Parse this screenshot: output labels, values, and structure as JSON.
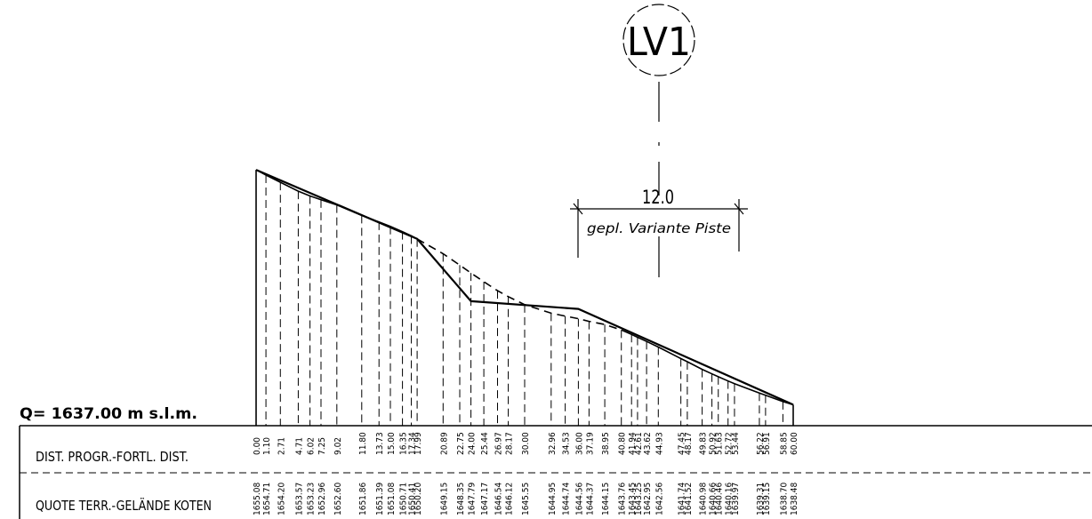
{
  "marker": {
    "label": "LV1"
  },
  "dimension": {
    "value": "12.0",
    "note": "gepl. Variante Piste"
  },
  "datum": {
    "label": "Q= 1637.00 m s.l.m."
  },
  "rows": {
    "distance_label": "DIST. PROGR.-FORTL. DIST.",
    "elevation_label": "QUOTE TERR.-GELÄNDE KOTEN"
  },
  "stations": [
    {
      "d": "0.00",
      "z": "1655.08"
    },
    {
      "d": "1.10",
      "z": "1654.71"
    },
    {
      "d": "2.71",
      "z": "1654.20"
    },
    {
      "d": "4.71",
      "z": "1653.57"
    },
    {
      "d": "6.02",
      "z": "1653.23"
    },
    {
      "d": "7.25",
      "z": "1652.96"
    },
    {
      "d": "9.02",
      "z": "1652.60"
    },
    {
      "d": "11.80",
      "z": "1651.86"
    },
    {
      "d": "13.73",
      "z": "1651.39"
    },
    {
      "d": "15.00",
      "z": "1651.08"
    },
    {
      "d": "16.35",
      "z": "1650.71"
    },
    {
      "d": "17.34",
      "z": "1650.41"
    },
    {
      "d": "17.99",
      "z": "1650.20"
    },
    {
      "d": "20.89",
      "z": "1649.15"
    },
    {
      "d": "22.75",
      "z": "1648.35"
    },
    {
      "d": "24.00",
      "z": "1647.79"
    },
    {
      "d": "25.44",
      "z": "1647.17"
    },
    {
      "d": "26.97",
      "z": "1646.54"
    },
    {
      "d": "28.17",
      "z": "1646.12"
    },
    {
      "d": "30.00",
      "z": "1645.55"
    },
    {
      "d": "32.96",
      "z": "1644.95"
    },
    {
      "d": "34.53",
      "z": "1644.74"
    },
    {
      "d": "36.00",
      "z": "1644.56"
    },
    {
      "d": "37.19",
      "z": "1644.37"
    },
    {
      "d": "38.95",
      "z": "1644.15"
    },
    {
      "d": "40.80",
      "z": "1643.76"
    },
    {
      "d": "41.94",
      "z": "1643.45"
    },
    {
      "d": "42.61",
      "z": "1643.25"
    },
    {
      "d": "43.62",
      "z": "1642.95"
    },
    {
      "d": "44.93",
      "z": "1642.56"
    },
    {
      "d": "47.45",
      "z": "1641.74"
    },
    {
      "d": "48.17",
      "z": "1641.52"
    },
    {
      "d": "49.83",
      "z": "1640.98"
    },
    {
      "d": "50.92",
      "z": "1640.66"
    },
    {
      "d": "51.63",
      "z": "1640.46"
    },
    {
      "d": "52.72",
      "z": "1640.16"
    },
    {
      "d": "53.44",
      "z": "1639.97"
    },
    {
      "d": "56.22",
      "z": "1639.31"
    },
    {
      "d": "56.91",
      "z": "1639.15"
    },
    {
      "d": "58.85",
      "z": "1638.70"
    },
    {
      "d": "60.00",
      "z": "1638.48"
    }
  ],
  "project_profile": [
    {
      "d": "0.00",
      "z": "1655.08"
    },
    {
      "d": "17.99",
      "z": "1650.20"
    },
    {
      "d": "24.00",
      "z": "1645.80"
    },
    {
      "d": "36.00",
      "z": "1645.25"
    },
    {
      "d": "60.00",
      "z": "1638.48"
    }
  ]
}
